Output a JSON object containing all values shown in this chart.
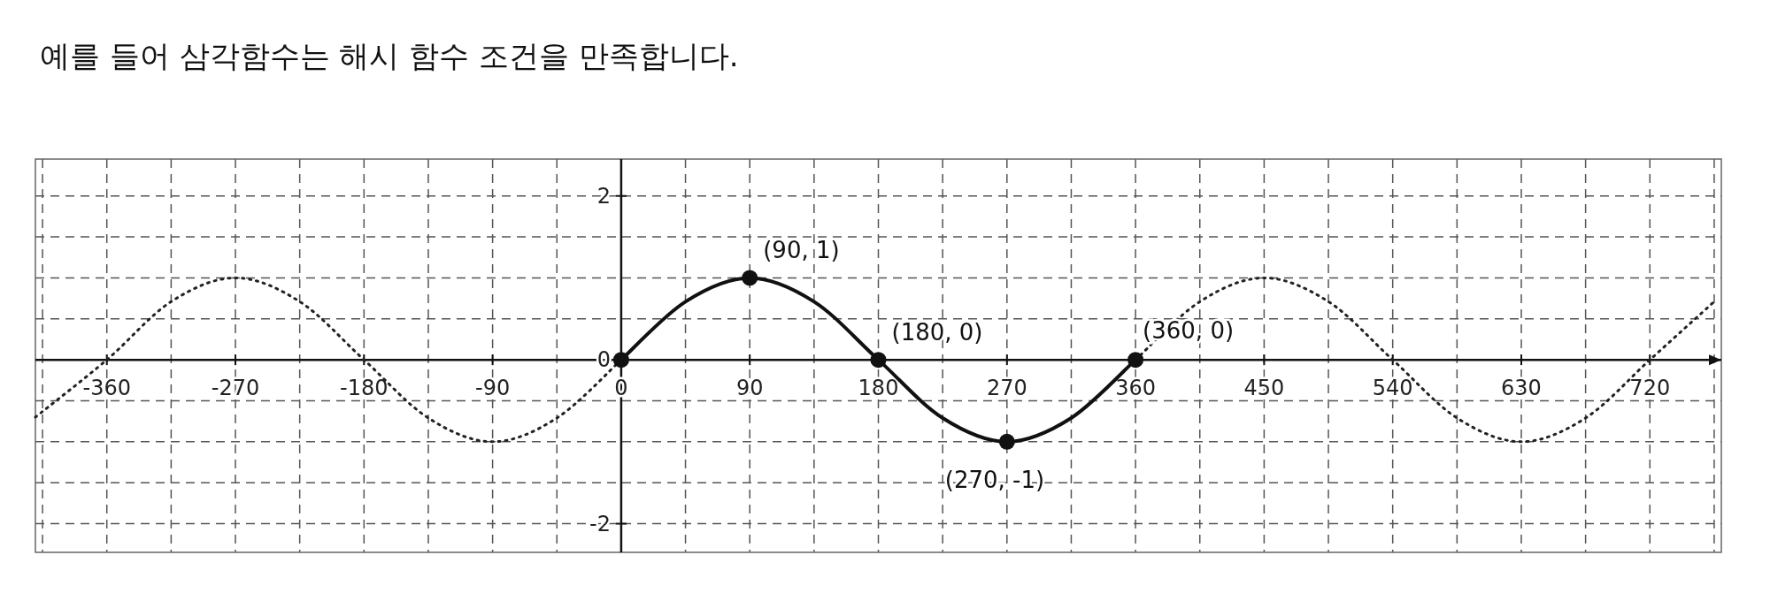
{
  "chart_data": {
    "type": "line",
    "title": "예를 들어 삼각함수는 해시 함수 조건을 만족합니다.",
    "xlim": [
      -410,
      770
    ],
    "ylim": [
      -2.35,
      2.45
    ],
    "xticks": [
      {
        "value": -405,
        "label": null
      },
      -360,
      {
        "value": -315,
        "label": null
      },
      -270,
      {
        "value": -225,
        "label": null
      },
      -180,
      {
        "value": -135,
        "label": null
      },
      -90,
      {
        "value": -45,
        "label": null
      },
      0,
      {
        "value": 45,
        "label": null
      },
      90,
      {
        "value": 135,
        "label": null
      },
      180,
      {
        "value": 225,
        "label": null
      },
      270,
      {
        "value": 315,
        "label": null
      },
      360,
      {
        "value": 405,
        "label": null
      },
      450,
      {
        "value": 495,
        "label": null
      },
      540,
      {
        "value": 585,
        "label": null
      },
      630,
      {
        "value": 675,
        "label": null
      },
      720,
      {
        "value": 765,
        "label": null
      }
    ],
    "yticks": [
      {
        "value": -2,
        "label": "-2"
      },
      {
        "value": -1.5,
        "label": null
      },
      {
        "value": -1,
        "label": null
      },
      {
        "value": -0.5,
        "label": null
      },
      0,
      {
        "value": 0.5,
        "label": null
      },
      {
        "value": 1,
        "label": null
      },
      {
        "value": 1.5,
        "label": null
      },
      2
    ],
    "grid": true,
    "series": [
      {
        "color": "#222222",
        "line_style": "dotted",
        "marker": "none",
        "x": [
          -410,
          -360,
          -315,
          -270,
          -225,
          -180,
          -135,
          -90,
          -45,
          0,
          360,
          405,
          450,
          495,
          540,
          585,
          630,
          675,
          720,
          765
        ],
        "values": [
          -0.7,
          0,
          0.71,
          1,
          0.71,
          0,
          -0.71,
          -1,
          -0.71,
          0,
          0,
          0.71,
          1,
          0.71,
          0,
          -0.71,
          -1,
          -0.71,
          0,
          0.71
        ]
      },
      {
        "color": "#111111",
        "line_style": "solid",
        "marker": "circle",
        "x": [
          0,
          45,
          90,
          135,
          180,
          225,
          270,
          315,
          360
        ],
        "values": [
          0,
          0.71,
          1,
          0.71,
          0,
          -0.71,
          -1,
          -0.71,
          0
        ]
      }
    ],
    "annotations": [
      {
        "text": "(90, 1)",
        "x": 90,
        "y": 1
      },
      {
        "text": "(180, 0)",
        "x": 180,
        "y": 0
      },
      {
        "text": "(270, -1)",
        "x": 270,
        "y": -1
      },
      {
        "text": "(360, 0)",
        "x": 360,
        "y": 0
      }
    ]
  }
}
